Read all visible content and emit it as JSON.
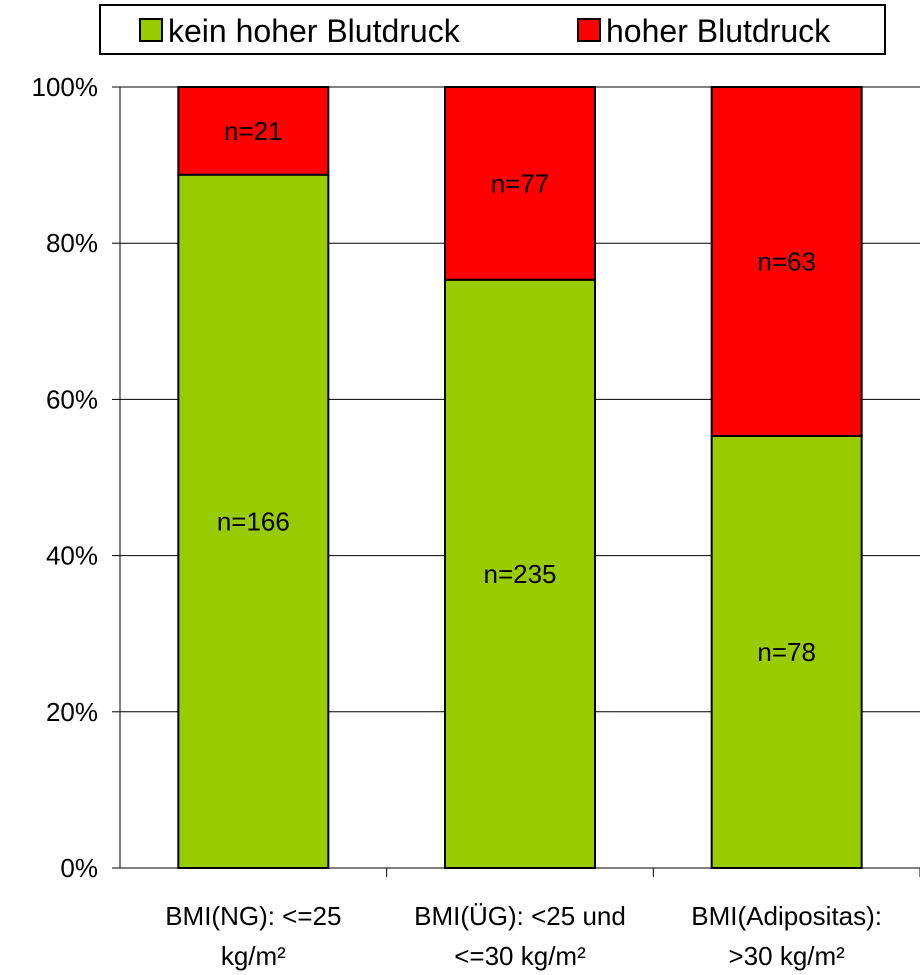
{
  "chart_data": {
    "type": "bar",
    "stacked": true,
    "normalized": true,
    "categories": [
      [
        "BMI(NG): <=25",
        "kg/m²"
      ],
      [
        "BMI(ÜG): <25 und",
        "<=30 kg/m²"
      ],
      [
        "BMI(Adipositas):",
        ">30 kg/m²"
      ]
    ],
    "series": [
      {
        "name": "kein hoher Blutdruck",
        "color": "#99CC00",
        "values": [
          166,
          235,
          78
        ],
        "labels": [
          "n=166",
          "n=235",
          "n=78"
        ]
      },
      {
        "name": "hoher Blutdruck",
        "color": "#FF0000",
        "values": [
          21,
          77,
          63
        ],
        "labels": [
          "n=21",
          "n=77",
          "n=63"
        ]
      }
    ],
    "yticks": [
      "0%",
      "20%",
      "40%",
      "60%",
      "80%",
      "100%"
    ],
    "ylim": [
      0,
      100
    ],
    "grid": true,
    "legend": "top",
    "title": "",
    "xlabel": "",
    "ylabel": ""
  }
}
